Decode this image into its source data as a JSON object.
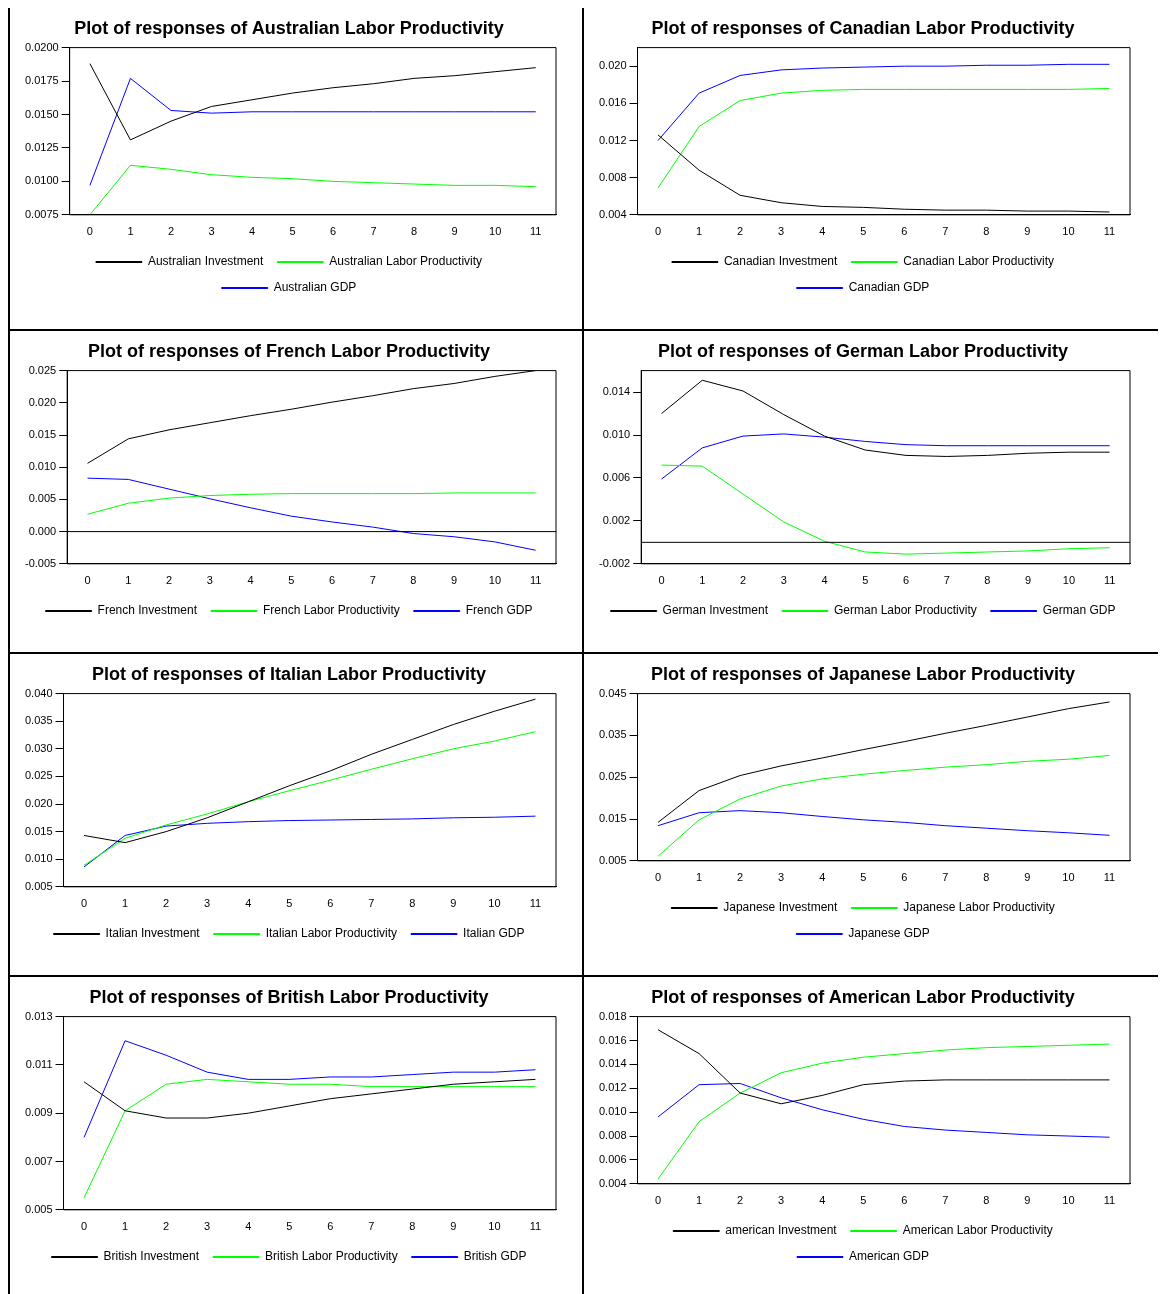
{
  "chart_data": [
    {
      "type": "line",
      "title": "Plot of responses of Australian Labor Productivity",
      "categories": [
        "0",
        "1",
        "2",
        "3",
        "4",
        "5",
        "6",
        "7",
        "8",
        "9",
        "10",
        "11"
      ],
      "ylim": [
        0.0075,
        0.02
      ],
      "yticks": [
        {
          "value": 0.0075,
          "label": "0.0075"
        },
        {
          "value": 0.01,
          "label": "0.0100"
        },
        {
          "value": 0.0125,
          "label": "0.0125"
        },
        {
          "value": 0.015,
          "label": "0.0150"
        },
        {
          "value": 0.0175,
          "label": "0.0175"
        },
        {
          "value": 0.02,
          "label": "0.0200"
        }
      ],
      "legend": "bottom",
      "marker": "none",
      "series": [
        {
          "name": "Australian Investment",
          "color": "#000000",
          "values": [
            0.0188,
            0.0131,
            0.0145,
            0.0156,
            0.0161,
            0.0166,
            0.017,
            0.0173,
            0.0177,
            0.0179,
            0.0182,
            0.0185
          ]
        },
        {
          "name": "Australian Labor Productivity",
          "color": "#00ff00",
          "values": [
            0.0075,
            0.0112,
            0.0109,
            0.0105,
            0.0103,
            0.0102,
            0.01,
            0.0099,
            0.0098,
            0.0097,
            0.0097,
            0.0096
          ]
        },
        {
          "name": "Australian GDP",
          "color": "#0000ff",
          "values": [
            0.0097,
            0.0177,
            0.0153,
            0.0151,
            0.0152,
            0.0152,
            0.0152,
            0.0152,
            0.0152,
            0.0152,
            0.0152,
            0.0152
          ]
        }
      ]
    },
    {
      "type": "line",
      "title": "Plot of responses of Canadian Labor Productivity",
      "categories": [
        "0",
        "1",
        "2",
        "3",
        "4",
        "5",
        "6",
        "7",
        "8",
        "9",
        "10",
        "11"
      ],
      "ylim": [
        0.004,
        0.022
      ],
      "yticks": [
        {
          "value": 0.004,
          "label": "0.004"
        },
        {
          "value": 0.008,
          "label": "0.008"
        },
        {
          "value": 0.012,
          "label": "0.012"
        },
        {
          "value": 0.016,
          "label": "0.016"
        },
        {
          "value": 0.02,
          "label": "0.020"
        }
      ],
      "legend": "bottom",
      "marker": "none",
      "series": [
        {
          "name": "Canadian Investment",
          "color": "#000000",
          "values": [
            0.0126,
            0.0088,
            0.0061,
            0.0053,
            0.0049,
            0.0048,
            0.0046,
            0.0045,
            0.0045,
            0.0044,
            0.0044,
            0.0043
          ]
        },
        {
          "name": "Canadian Labor Productivity",
          "color": "#00ff00",
          "values": [
            0.0069,
            0.0135,
            0.0163,
            0.0171,
            0.0174,
            0.0175,
            0.0175,
            0.0175,
            0.0175,
            0.0175,
            0.0175,
            0.0176
          ]
        },
        {
          "name": "Canadian GDP",
          "color": "#0000ff",
          "values": [
            0.012,
            0.0171,
            0.019,
            0.0196,
            0.0198,
            0.0199,
            0.02,
            0.02,
            0.0201,
            0.0201,
            0.0202,
            0.0202
          ]
        }
      ]
    },
    {
      "type": "line",
      "title": "Plot of responses of French Labor Productivity",
      "categories": [
        "0",
        "1",
        "2",
        "3",
        "4",
        "5",
        "6",
        "7",
        "8",
        "9",
        "10",
        "11"
      ],
      "ylim": [
        -0.005,
        0.025
      ],
      "yticks": [
        {
          "value": -0.005,
          "label": "-0.005"
        },
        {
          "value": 0,
          "label": "0.000"
        },
        {
          "value": 0.005,
          "label": "0.005"
        },
        {
          "value": 0.01,
          "label": "0.010"
        },
        {
          "value": 0.015,
          "label": "0.015"
        },
        {
          "value": 0.02,
          "label": "0.020"
        },
        {
          "value": 0.025,
          "label": "0.025"
        }
      ],
      "legend": "bottom",
      "marker": "none",
      "ref_lines": [
        {
          "axis": "y",
          "value": 0,
          "color": "#000000"
        }
      ],
      "series": [
        {
          "name": "French Investment",
          "color": "#000000",
          "values": [
            0.0106,
            0.0144,
            0.0158,
            0.0169,
            0.018,
            0.019,
            0.0201,
            0.0211,
            0.0222,
            0.023,
            0.0241,
            0.025
          ]
        },
        {
          "name": "French Labor Productivity",
          "color": "#00ff00",
          "values": [
            0.0027,
            0.0044,
            0.0052,
            0.0056,
            0.0058,
            0.0059,
            0.0059,
            0.0059,
            0.0059,
            0.006,
            0.006,
            0.006
          ]
        },
        {
          "name": "French GDP",
          "color": "#0000ff",
          "values": [
            0.0083,
            0.0081,
            0.0066,
            0.0051,
            0.0037,
            0.0024,
            0.0015,
            0.0007,
            -0.0003,
            -0.0008,
            -0.0016,
            -0.0029
          ]
        }
      ]
    },
    {
      "type": "line",
      "title": "Plot of responses of German Labor Productivity",
      "categories": [
        "0",
        "1",
        "2",
        "3",
        "4",
        "5",
        "6",
        "7",
        "8",
        "9",
        "10",
        "11"
      ],
      "ylim": [
        -0.002,
        0.016
      ],
      "yticks": [
        {
          "value": -0.002,
          "label": "-0.002"
        },
        {
          "value": 0.002,
          "label": "0.002"
        },
        {
          "value": 0.006,
          "label": "0.006"
        },
        {
          "value": 0.01,
          "label": "0.010"
        },
        {
          "value": 0.014,
          "label": "0.014"
        }
      ],
      "legend": "bottom",
      "marker": "none",
      "ref_lines": [
        {
          "axis": "y",
          "value": 0,
          "color": "#000000"
        }
      ],
      "series": [
        {
          "name": "German Investment",
          "color": "#000000",
          "values": [
            0.012,
            0.0151,
            0.0141,
            0.0119,
            0.0099,
            0.0086,
            0.0081,
            0.008,
            0.0081,
            0.0083,
            0.0084,
            0.0084
          ]
        },
        {
          "name": "German Labor Productivity",
          "color": "#00ff00",
          "values": [
            0.0072,
            0.0071,
            0.0045,
            0.0019,
            0.0001,
            -0.0009,
            -0.0011,
            -0.001,
            -0.0009,
            -0.0008,
            -0.0006,
            -0.0005
          ]
        },
        {
          "name": "German GDP",
          "color": "#0000ff",
          "values": [
            0.0059,
            0.0088,
            0.0099,
            0.0101,
            0.0098,
            0.0094,
            0.0091,
            0.009,
            0.009,
            0.009,
            0.009,
            0.009
          ]
        }
      ]
    },
    {
      "type": "line",
      "title": "Plot of responses of Italian Labor Productivity",
      "categories": [
        "0",
        "1",
        "2",
        "3",
        "4",
        "5",
        "6",
        "7",
        "8",
        "9",
        "10",
        "11"
      ],
      "ylim": [
        0.005,
        0.04
      ],
      "yticks": [
        {
          "value": 0.005,
          "label": "0.005"
        },
        {
          "value": 0.01,
          "label": "0.010"
        },
        {
          "value": 0.015,
          "label": "0.015"
        },
        {
          "value": 0.02,
          "label": "0.020"
        },
        {
          "value": 0.025,
          "label": "0.025"
        },
        {
          "value": 0.03,
          "label": "0.030"
        },
        {
          "value": 0.035,
          "label": "0.035"
        },
        {
          "value": 0.04,
          "label": "0.040"
        }
      ],
      "legend": "bottom",
      "marker": "none",
      "series": [
        {
          "name": "Italian Investment",
          "color": "#000000",
          "values": [
            0.0143,
            0.013,
            0.015,
            0.0175,
            0.0204,
            0.0233,
            0.026,
            0.029,
            0.0317,
            0.0344,
            0.0368,
            0.039
          ]
        },
        {
          "name": "Italian Labor Productivity",
          "color": "#00ff00",
          "values": [
            0.0089,
            0.0138,
            0.0162,
            0.0182,
            0.0204,
            0.0224,
            0.0243,
            0.0263,
            0.0282,
            0.03,
            0.0314,
            0.0331
          ]
        },
        {
          "name": "Italian GDP",
          "color": "#0000ff",
          "values": [
            0.0086,
            0.0143,
            0.016,
            0.0165,
            0.0168,
            0.017,
            0.0171,
            0.0172,
            0.0173,
            0.0175,
            0.0176,
            0.0178
          ]
        }
      ]
    },
    {
      "type": "line",
      "title": "Plot of responses of Japanese Labor Productivity",
      "categories": [
        "0",
        "1",
        "2",
        "3",
        "4",
        "5",
        "6",
        "7",
        "8",
        "9",
        "10",
        "11"
      ],
      "ylim": [
        0.005,
        0.045
      ],
      "yticks": [
        {
          "value": 0.005,
          "label": "0.005"
        },
        {
          "value": 0.015,
          "label": "0.015"
        },
        {
          "value": 0.025,
          "label": "0.025"
        },
        {
          "value": 0.035,
          "label": "0.035"
        },
        {
          "value": 0.045,
          "label": "0.045"
        }
      ],
      "legend": "bottom",
      "marker": "none",
      "series": [
        {
          "name": "Japanese Investment",
          "color": "#000000",
          "values": [
            0.0142,
            0.0218,
            0.0254,
            0.0277,
            0.0296,
            0.0316,
            0.0335,
            0.0355,
            0.0374,
            0.0394,
            0.0414,
            0.043
          ]
        },
        {
          "name": "Japanese Labor Productivity",
          "color": "#00ff00",
          "values": [
            0.0061,
            0.0148,
            0.0198,
            0.0229,
            0.0246,
            0.0257,
            0.0266,
            0.0274,
            0.028,
            0.0288,
            0.0293,
            0.0302
          ]
        },
        {
          "name": "Japanese GDP",
          "color": "#0000ff",
          "values": [
            0.0134,
            0.0165,
            0.017,
            0.0165,
            0.0156,
            0.0148,
            0.0142,
            0.0134,
            0.0128,
            0.0122,
            0.0117,
            0.0111
          ]
        }
      ]
    },
    {
      "type": "line",
      "title": "Plot of responses of British Labor Productivity",
      "categories": [
        "0",
        "1",
        "2",
        "3",
        "4",
        "5",
        "6",
        "7",
        "8",
        "9",
        "10",
        "11"
      ],
      "ylim": [
        0.005,
        0.013
      ],
      "yticks": [
        {
          "value": 0.005,
          "label": "0.005"
        },
        {
          "value": 0.007,
          "label": "0.007"
        },
        {
          "value": 0.009,
          "label": "0.009"
        },
        {
          "value": 0.011,
          "label": "0.011"
        },
        {
          "value": 0.013,
          "label": "0.013"
        }
      ],
      "legend": "bottom",
      "marker": "none",
      "series": [
        {
          "name": "British Investment",
          "color": "#000000",
          "values": [
            0.0103,
            0.0091,
            0.0088,
            0.0088,
            0.009,
            0.0093,
            0.0096,
            0.0098,
            0.01,
            0.0102,
            0.0103,
            0.0104
          ]
        },
        {
          "name": "British Labor Productivity",
          "color": "#00ff00",
          "values": [
            0.0055,
            0.0091,
            0.0102,
            0.0104,
            0.0103,
            0.0102,
            0.0102,
            0.0101,
            0.0101,
            0.0101,
            0.0101,
            0.0101
          ]
        },
        {
          "name": "British GDP",
          "color": "#0000ff",
          "values": [
            0.008,
            0.012,
            0.0114,
            0.0107,
            0.0104,
            0.0104,
            0.0105,
            0.0105,
            0.0106,
            0.0107,
            0.0107,
            0.0108
          ]
        }
      ]
    },
    {
      "type": "line",
      "title": "Plot of responses of American Labor Productivity",
      "categories": [
        "0",
        "1",
        "2",
        "3",
        "4",
        "5",
        "6",
        "7",
        "8",
        "9",
        "10",
        "11"
      ],
      "ylim": [
        0.004,
        0.018
      ],
      "yticks": [
        {
          "value": 0.004,
          "label": "0.004"
        },
        {
          "value": 0.006,
          "label": "0.006"
        },
        {
          "value": 0.008,
          "label": "0.008"
        },
        {
          "value": 0.01,
          "label": "0.010"
        },
        {
          "value": 0.012,
          "label": "0.012"
        },
        {
          "value": 0.014,
          "label": "0.014"
        },
        {
          "value": 0.016,
          "label": "0.016"
        },
        {
          "value": 0.018,
          "label": "0.018"
        }
      ],
      "legend": "bottom",
      "marker": "none",
      "series": [
        {
          "name": "american Investment",
          "color": "#000000",
          "values": [
            0.0169,
            0.0149,
            0.0116,
            0.0107,
            0.0114,
            0.0123,
            0.0126,
            0.0127,
            0.0127,
            0.0127,
            0.0127,
            0.0127
          ]
        },
        {
          "name": "American Labor Productivity",
          "color": "#00ff00",
          "values": [
            0.0044,
            0.0092,
            0.0116,
            0.0133,
            0.0141,
            0.0146,
            0.0149,
            0.0152,
            0.0154,
            0.0155,
            0.0156,
            0.0157
          ]
        },
        {
          "name": "American GDP",
          "color": "#0000ff",
          "values": [
            0.0096,
            0.0123,
            0.0124,
            0.0112,
            0.0102,
            0.0094,
            0.0088,
            0.0085,
            0.0083,
            0.0081,
            0.008,
            0.0079
          ]
        }
      ]
    }
  ]
}
